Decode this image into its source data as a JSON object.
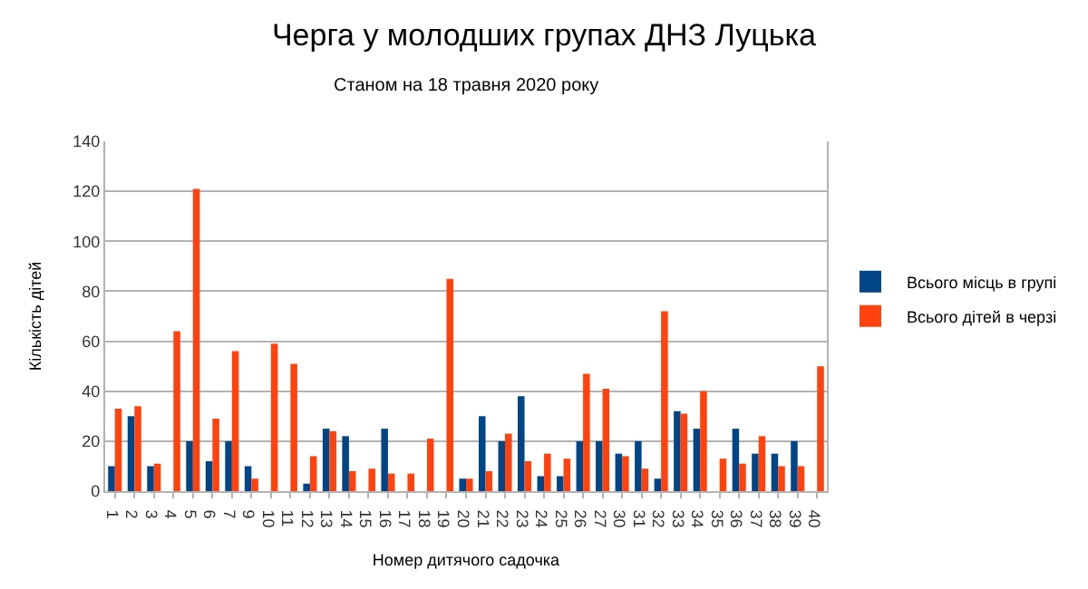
{
  "chart_data": {
    "type": "bar",
    "title": "Черга у молодших групах ДНЗ Луцька",
    "subtitle": "Станом на 18 травня 2020 року",
    "xlabel": "Номер дитячого садочка",
    "ylabel": "Кількість дітей",
    "categories": [
      "1",
      "2",
      "3",
      "4",
      "5",
      "6",
      "7",
      "9",
      "10",
      "11",
      "12",
      "13",
      "14",
      "15",
      "16",
      "17",
      "18",
      "19",
      "20",
      "21",
      "22",
      "23",
      "24",
      "25",
      "26",
      "27",
      "30",
      "31",
      "32",
      "33",
      "34",
      "35",
      "36",
      "37",
      "38",
      "39",
      "40"
    ],
    "series": [
      {
        "name": "Всього місць в групі",
        "color": "#004586",
        "values": [
          10,
          30,
          10,
          null,
          20,
          12,
          20,
          10,
          null,
          null,
          3,
          25,
          22,
          null,
          25,
          null,
          null,
          null,
          5,
          30,
          20,
          38,
          6,
          6,
          20,
          20,
          15,
          20,
          5,
          32,
          25,
          null,
          25,
          15,
          15,
          20,
          null
        ]
      },
      {
        "name": "Всього дітей в черзі",
        "color": "#ff420e",
        "values": [
          33,
          34,
          11,
          64,
          121,
          29,
          56,
          5,
          59,
          51,
          14,
          24,
          8,
          9,
          7,
          7,
          21,
          85,
          5,
          8,
          23,
          12,
          15,
          13,
          47,
          41,
          14,
          9,
          72,
          31,
          40,
          13,
          11,
          22,
          10,
          10,
          50
        ]
      }
    ],
    "ylim": [
      0,
      140
    ],
    "yticks": [
      0,
      20,
      40,
      60,
      80,
      100,
      120,
      140
    ],
    "grid": "y",
    "legend": "right"
  }
}
